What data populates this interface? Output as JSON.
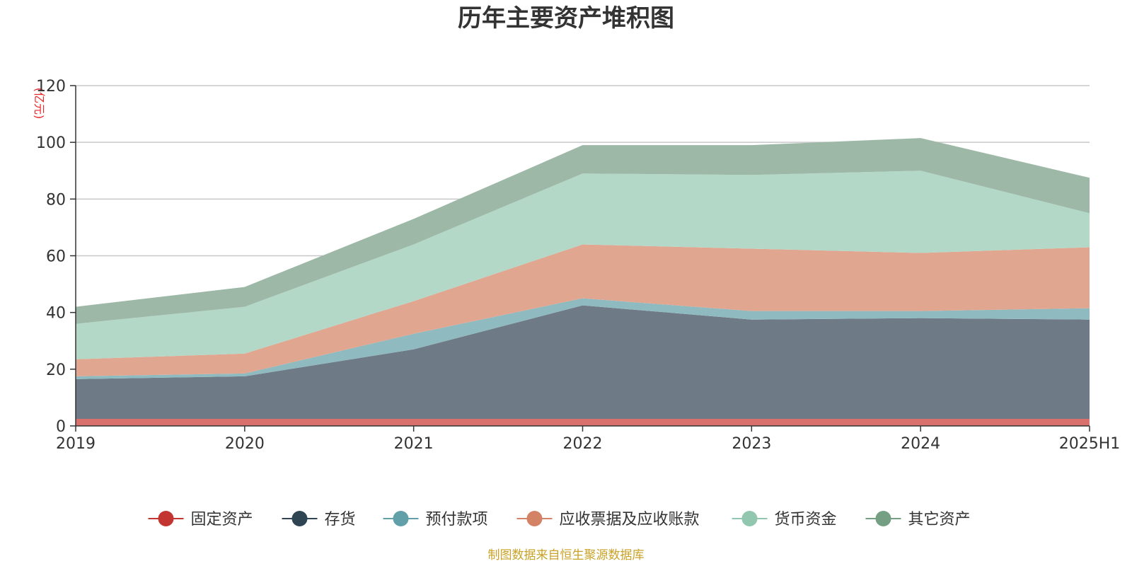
{
  "source_note": "制图数据来自恒生聚源数据库",
  "chart_data": {
    "type": "area",
    "stacked": true,
    "title": "历年主要资产堆积图",
    "unit_label": "(亿元)",
    "categories": [
      "2019",
      "2020",
      "2021",
      "2022",
      "2023",
      "2024",
      "2025H1"
    ],
    "ylim": [
      0,
      120
    ],
    "yticks": [
      0,
      20,
      40,
      60,
      80,
      100,
      120
    ],
    "grid": true,
    "legend_position": "bottom",
    "series": [
      {
        "name": "固定资产",
        "color": "#c23531",
        "fill": "#d9706b",
        "values": [
          2.5,
          2.5,
          2.5,
          2.5,
          2.5,
          2.5,
          2.5
        ]
      },
      {
        "name": "存货",
        "color": "#2f4554",
        "fill": "#6e7b87",
        "values": [
          14.0,
          15.0,
          24.5,
          40.0,
          35.0,
          35.5,
          35.0
        ]
      },
      {
        "name": "预付款项",
        "color": "#61a0a8",
        "fill": "#8fbac0",
        "values": [
          1.0,
          1.0,
          5.5,
          2.5,
          3.0,
          2.5,
          4.0
        ]
      },
      {
        "name": "应收票据及应收账款",
        "color": "#d48265",
        "fill": "#e0a690",
        "values": [
          6.0,
          7.0,
          11.5,
          19.0,
          22.0,
          20.5,
          21.5
        ]
      },
      {
        "name": "货币资金",
        "color": "#91c7ae",
        "fill": "#b3d8c7",
        "values": [
          12.5,
          16.5,
          20.0,
          25.0,
          26.0,
          29.0,
          12.0
        ]
      },
      {
        "name": "其它资产",
        "color": "#749f83",
        "fill": "#9db8a6",
        "values": [
          6.0,
          7.0,
          9.0,
          10.0,
          10.5,
          11.5,
          12.5
        ]
      }
    ]
  }
}
